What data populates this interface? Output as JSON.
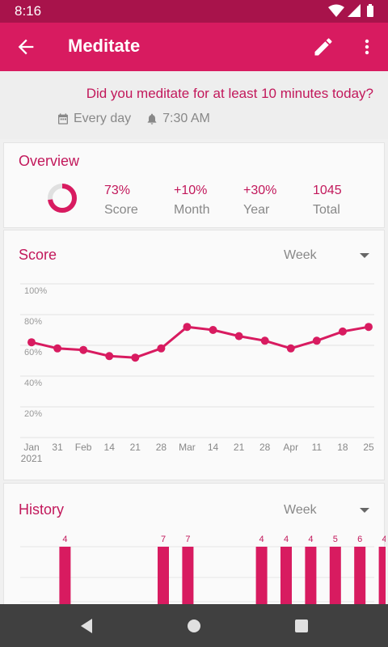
{
  "status": {
    "time": "8:16"
  },
  "app_bar": {
    "title": "Meditate"
  },
  "habit": {
    "question": "Did you meditate for at least 10 minutes today?",
    "frequency": "Every day",
    "reminder": "7:30 AM"
  },
  "colors": {
    "accent": "#d81b60",
    "accent_dark": "#a8134b",
    "text_accent": "#c2185b"
  },
  "overview": {
    "title": "Overview",
    "score_fraction": 0.73,
    "stats": [
      {
        "value": "73%",
        "label": "Score"
      },
      {
        "value": "+10%",
        "label": "Month"
      },
      {
        "value": "+30%",
        "label": "Year"
      },
      {
        "value": "1045",
        "label": "Total"
      }
    ]
  },
  "score_card": {
    "title": "Score",
    "range": "Week"
  },
  "history_card": {
    "title": "History",
    "range": "Week"
  },
  "chart_data": [
    {
      "type": "line",
      "title": "Score",
      "x": [
        "Jan",
        "31",
        "Feb",
        "14",
        "21",
        "28",
        "Mar",
        "14",
        "21",
        "28",
        "Apr",
        "11",
        "18",
        "25"
      ],
      "x_sub": [
        "2021",
        "",
        "",
        "",
        "",
        "",
        "",
        "",
        "",
        "",
        "",
        "",
        "",
        ""
      ],
      "y_ticks": [
        "100%",
        "80%",
        "60%",
        "40%",
        "20%"
      ],
      "y_tick_values": [
        100,
        80,
        60,
        40,
        20
      ],
      "ylim": [
        0,
        100
      ],
      "values": [
        62,
        58,
        57,
        53,
        52,
        58,
        72,
        70,
        66,
        63,
        58,
        63,
        69,
        72
      ],
      "grid": true
    },
    {
      "type": "bar",
      "title": "History",
      "values": [
        0,
        4,
        0,
        0,
        0,
        7,
        7,
        0,
        0,
        4,
        4,
        4,
        5,
        6,
        4
      ],
      "labels": [
        "",
        "4",
        "",
        "",
        "",
        "7",
        "7",
        "",
        "",
        "4",
        "4",
        "4",
        "5",
        "6",
        "4"
      ],
      "ylim": [
        0,
        7
      ]
    }
  ],
  "icons": {
    "back": "arrow-back-icon",
    "edit": "pencil-icon",
    "more": "more-vert-icon",
    "calendar": "calendar-icon",
    "bell": "bell-icon"
  }
}
